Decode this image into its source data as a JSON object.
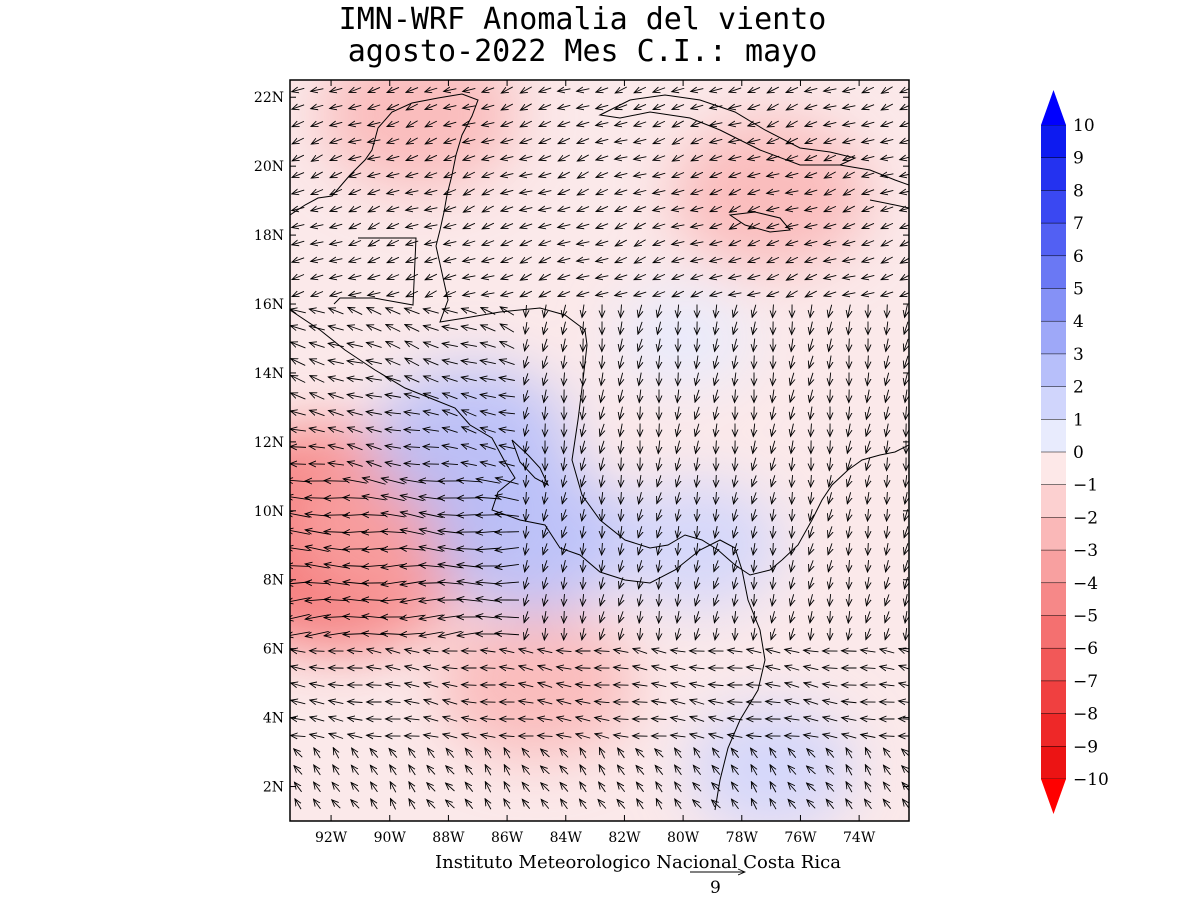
{
  "title": {
    "line1": "IMN-WRF Anomalia del viento",
    "line2": "agosto-2022 Mes C.I.: mayo"
  },
  "map": {
    "lat_range": [
      1,
      22.5
    ],
    "lon_range": [
      -93.4,
      -72.3
    ],
    "lat_ticks": [
      "22N",
      "20N",
      "18N",
      "16N",
      "14N",
      "12N",
      "10N",
      "8N",
      "6N",
      "4N",
      "2N"
    ],
    "lon_ticks": [
      "92W",
      "90W",
      "88W",
      "86W",
      "84W",
      "82W",
      "80W",
      "78W",
      "76W",
      "74W"
    ],
    "field": "wind anomaly",
    "anomaly_regions": [
      {
        "name": "pacific-strong-negative",
        "lon": -91.8,
        "lat": 9.2,
        "value": -6
      },
      {
        "name": "pacific-negative-band",
        "lon": -89.5,
        "lat": 9.8,
        "value": -4
      },
      {
        "name": "south-pacific-negative",
        "lon": -85.0,
        "lat": 5.0,
        "value": -3
      },
      {
        "name": "gulf-mexico-negative",
        "lon": -89.0,
        "lat": 21.5,
        "value": -3
      },
      {
        "name": "caribbean-negative",
        "lon": -77.0,
        "lat": 19.2,
        "value": -3
      },
      {
        "name": "gulf-fonseca-positive",
        "lon": -87.2,
        "lat": 12.0,
        "value": 3
      },
      {
        "name": "nicoya-positive",
        "lon": -85.2,
        "lat": 9.2,
        "value": 3
      },
      {
        "name": "panama-positive",
        "lon": -79.5,
        "lat": 9.0,
        "value": 2
      },
      {
        "name": "colombia-positive",
        "lon": -77.0,
        "lat": 2.5,
        "value": 2
      },
      {
        "name": "caribbean-positive",
        "lon": -80.0,
        "lat": 15.0,
        "value": 1
      }
    ]
  },
  "colorbar": {
    "max_label": "10",
    "labels": [
      "10",
      "9",
      "8",
      "7",
      "6",
      "5",
      "4",
      "3",
      "2",
      "1",
      "0",
      "−1",
      "−2",
      "−3",
      "−4",
      "−5",
      "−6",
      "−7",
      "−8",
      "−9",
      "−10"
    ],
    "colors": [
      "#0d1bf0",
      "#2432f0",
      "#3a48f2",
      "#5260f3",
      "#6a78f4",
      "#8591f6",
      "#9ea8f8",
      "#b7bffa",
      "#d0d5fc",
      "#e8ebfd",
      "#fde8e8",
      "#fcd0d0",
      "#fab8b8",
      "#f8a0a0",
      "#f68888",
      "#f47070",
      "#f25858",
      "#f04040",
      "#ee2828",
      "#ec1414"
    ],
    "top_arrow_color": "#0000ff",
    "bottom_arrow_color": "#ff0000"
  },
  "credit": "Instituto Meteorologico Nacional Costa Rica",
  "reference_vector": {
    "value": "9"
  },
  "colors": {
    "coast": "#000000",
    "frame": "#000000"
  }
}
